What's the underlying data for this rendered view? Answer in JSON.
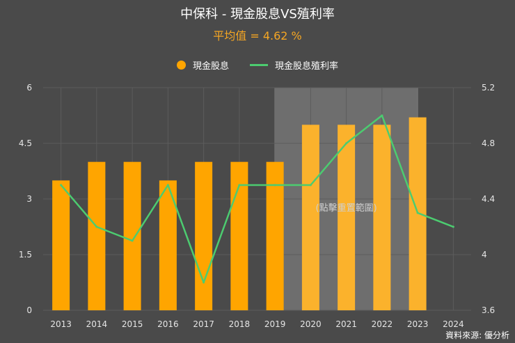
{
  "chart_data": {
    "type": "bar+line",
    "title": "中保科 - 現金股息VS殖利率",
    "subtitle": "平均值 = 4.62 %",
    "categories": [
      "2013",
      "2014",
      "2015",
      "2016",
      "2017",
      "2018",
      "2019",
      "2020",
      "2021",
      "2022",
      "2023",
      "2024"
    ],
    "series": [
      {
        "name": "現金股息",
        "type": "bar",
        "axis": "left",
        "color": "#ffa500",
        "values": [
          3.5,
          4.0,
          4.0,
          3.5,
          4.0,
          4.0,
          4.0,
          5.0,
          5.0,
          5.0,
          5.2,
          null
        ]
      },
      {
        "name": "現金股息殖利率",
        "type": "line",
        "axis": "right",
        "color": "#4ccc70",
        "values": [
          4.5,
          4.2,
          4.1,
          4.5,
          3.8,
          4.5,
          4.5,
          4.5,
          4.8,
          5.0,
          4.3,
          4.2
        ]
      }
    ],
    "y_left": {
      "min": 0,
      "max": 6,
      "ticks": [
        "0",
        "1.5",
        "3",
        "4.5",
        "6"
      ]
    },
    "y_right": {
      "min": 3.6,
      "max": 5.2,
      "ticks": [
        "3.6",
        "4",
        "4.4",
        "4.8",
        "5.2"
      ]
    },
    "highlight_range": {
      "from": "2019",
      "to": "2023",
      "label": "(點擊重置範圍)"
    },
    "grid": true,
    "legend_position": "top-center"
  },
  "source": "資料來源: 優分析"
}
